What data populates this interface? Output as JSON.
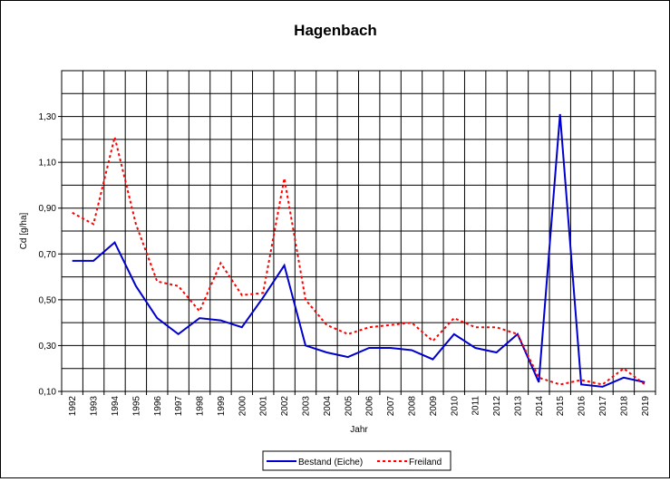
{
  "chart_data": {
    "type": "line",
    "title": "Hagenbach",
    "xlabel": "Jahr",
    "ylabel": "Cd [g/ha]",
    "categories": [
      "1992",
      "1993",
      "1994",
      "1995",
      "1996",
      "1997",
      "1998",
      "1999",
      "2000",
      "2001",
      "2002",
      "2003",
      "2004",
      "2005",
      "2006",
      "2007",
      "2008",
      "2009",
      "2010",
      "2011",
      "2012",
      "2013",
      "2014",
      "2015",
      "2016",
      "2017",
      "2018",
      "2019"
    ],
    "ylim": [
      0.1,
      1.5
    ],
    "yticks": [
      "0,10",
      "0,30",
      "0,50",
      "0,70",
      "0,90",
      "1,10",
      "1,30"
    ],
    "ytick_values": [
      0.1,
      0.3,
      0.5,
      0.7,
      0.9,
      1.1,
      1.3
    ],
    "grid": true,
    "legend_position": "bottom-center",
    "series": [
      {
        "name": "Bestand (Eiche)",
        "color": "#0000cc",
        "style": "solid",
        "values": [
          0.67,
          0.67,
          0.75,
          0.56,
          0.42,
          0.35,
          0.42,
          0.41,
          0.38,
          0.51,
          0.65,
          0.3,
          0.27,
          0.25,
          0.29,
          0.29,
          0.28,
          0.24,
          0.35,
          0.29,
          0.27,
          0.35,
          0.14,
          1.31,
          0.13,
          0.12,
          0.16,
          0.14
        ]
      },
      {
        "name": "Freiland",
        "color": "#ff0000",
        "style": "dotted",
        "values": [
          0.88,
          0.83,
          1.21,
          0.83,
          0.58,
          0.56,
          0.45,
          0.66,
          0.52,
          0.53,
          1.03,
          0.5,
          0.39,
          0.35,
          0.38,
          0.39,
          0.4,
          0.32,
          0.42,
          0.38,
          0.38,
          0.35,
          0.16,
          0.13,
          0.15,
          0.13,
          0.2,
          0.13
        ]
      }
    ]
  }
}
